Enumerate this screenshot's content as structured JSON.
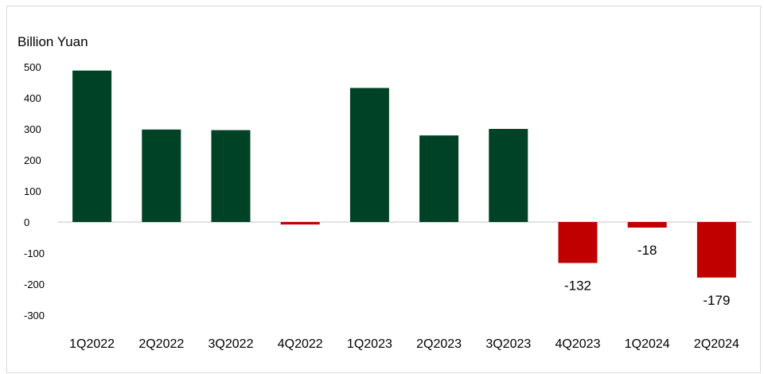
{
  "chart_data": {
    "type": "bar",
    "ylabel": "Billion Yuan",
    "ylim": [
      -300,
      500
    ],
    "yticks": [
      500,
      400,
      300,
      200,
      100,
      0,
      -100,
      -200,
      -300
    ],
    "categories": [
      "1Q2022",
      "2Q2022",
      "3Q2022",
      "4Q2022",
      "1Q2023",
      "2Q2023",
      "3Q2023",
      "4Q2023",
      "1Q2024",
      "2Q2024"
    ],
    "values": [
      488,
      298,
      296,
      -8,
      432,
      279,
      300,
      -132,
      -18,
      -179
    ],
    "data_labels": [
      "",
      "",
      "",
      "",
      "",
      "",
      "",
      "-132",
      "-18",
      "-179"
    ],
    "grid": false,
    "colors": {
      "positive": "#004225",
      "negative": "#c00000",
      "axis": "#d9d9d9"
    }
  }
}
